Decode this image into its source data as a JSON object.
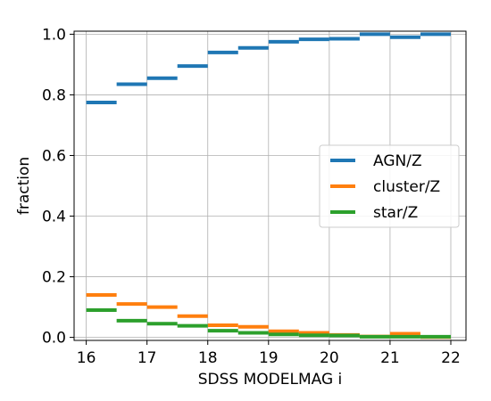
{
  "chart_data": {
    "type": "step",
    "xlabel": "SDSS MODELMAG i",
    "ylabel": "fraction",
    "xlim": [
      15.8,
      22.25
    ],
    "ylim": [
      -0.01,
      1.01
    ],
    "xticks": [
      "16",
      "17",
      "18",
      "19",
      "20",
      "21",
      "22"
    ],
    "yticks": [
      "0.0",
      "0.2",
      "0.4",
      "0.6",
      "0.8",
      "1.0"
    ],
    "grid": true,
    "legend_position": "center-right",
    "bin_edges": [
      16,
      16.5,
      17,
      17.5,
      18,
      18.5,
      19,
      19.5,
      20,
      20.5,
      21,
      21.5,
      22
    ],
    "series": [
      {
        "name": "AGN/Z",
        "color": "#1f77b4",
        "values": [
          0.775,
          0.835,
          0.855,
          0.895,
          0.94,
          0.955,
          0.975,
          0.983,
          0.985,
          1.0,
          0.99,
          1.0
        ]
      },
      {
        "name": "cluster/Z",
        "color": "#ff7f0e",
        "values": [
          0.14,
          0.11,
          0.1,
          0.07,
          0.04,
          0.035,
          0.02,
          0.015,
          0.008,
          0.003,
          0.012,
          0.001
        ]
      },
      {
        "name": "star/Z",
        "color": "#2ca02c",
        "values": [
          0.09,
          0.055,
          0.045,
          0.038,
          0.022,
          0.015,
          0.01,
          0.007,
          0.006,
          0.002,
          0.002,
          0.002
        ]
      }
    ]
  }
}
